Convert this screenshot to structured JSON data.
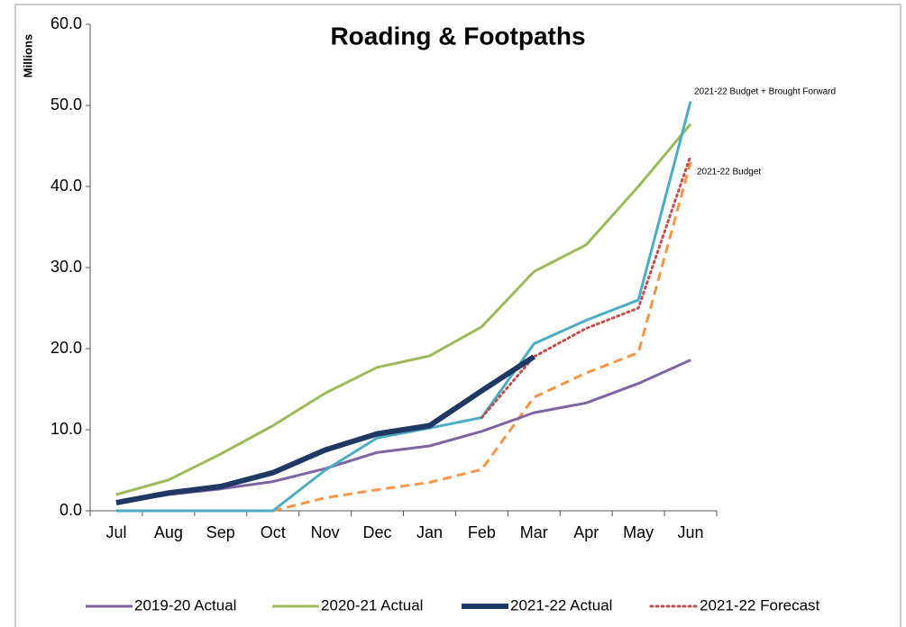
{
  "chart_data": {
    "type": "line",
    "title": "Roading & Footpaths",
    "y_label": "Millions",
    "categories": [
      "Jul",
      "Aug",
      "Sep",
      "Oct",
      "Nov",
      "Dec",
      "Jan",
      "Feb",
      "Mar",
      "Apr",
      "May",
      "Jun"
    ],
    "ylim": [
      0,
      60
    ],
    "yticks": [
      {
        "value": 0,
        "label": "0.0"
      },
      {
        "value": 10,
        "label": "10.0"
      },
      {
        "value": 20,
        "label": "20.0"
      },
      {
        "value": 30,
        "label": "30.0"
      },
      {
        "value": 40,
        "label": "40.0"
      },
      {
        "value": 50,
        "label": "50.0"
      },
      {
        "value": 60,
        "label": "60.0"
      }
    ],
    "legend": "bottom",
    "series": [
      {
        "name": "2019-20 Actual",
        "color": "#8064a2",
        "style": "solid",
        "values": [
          1.0,
          2.0,
          2.7,
          3.6,
          5.2,
          7.2,
          8.0,
          9.8,
          12.1,
          13.3,
          15.7,
          18.6
        ]
      },
      {
        "name": "2020-21 Actual",
        "color": "#9bbb59",
        "style": "solid",
        "values": [
          2.0,
          3.8,
          7.0,
          10.5,
          14.5,
          17.7,
          19.1,
          22.7,
          29.5,
          32.8,
          40.0,
          47.7
        ]
      },
      {
        "name": "2021-22 Actual",
        "color": "#1f3864",
        "style": "solid",
        "values": [
          1.0,
          2.2,
          3.0,
          4.7,
          7.5,
          9.5,
          10.5,
          14.8,
          19.0,
          null,
          null,
          null
        ]
      },
      {
        "name": "2021-22 Forecast",
        "color": "#c0504d",
        "style": "dotted",
        "values": [
          null,
          null,
          null,
          null,
          null,
          null,
          null,
          11.5,
          19.0,
          22.5,
          25.0,
          43.8
        ]
      }
    ],
    "labeled_series": [
      {
        "name": "2021-22 Budget + Brought Forward",
        "color": "#4bacc6",
        "style": "solid",
        "values": [
          0,
          0,
          0,
          0,
          5.0,
          9.0,
          10.2,
          11.5,
          20.6,
          23.5,
          26.0,
          50.5
        ]
      },
      {
        "name": "2021-22 Budget",
        "color": "#f79646",
        "style": "dashed",
        "values": [
          null,
          null,
          null,
          0,
          1.6,
          2.6,
          3.5,
          5.1,
          14.0,
          17.0,
          19.5,
          43.0
        ]
      }
    ]
  }
}
